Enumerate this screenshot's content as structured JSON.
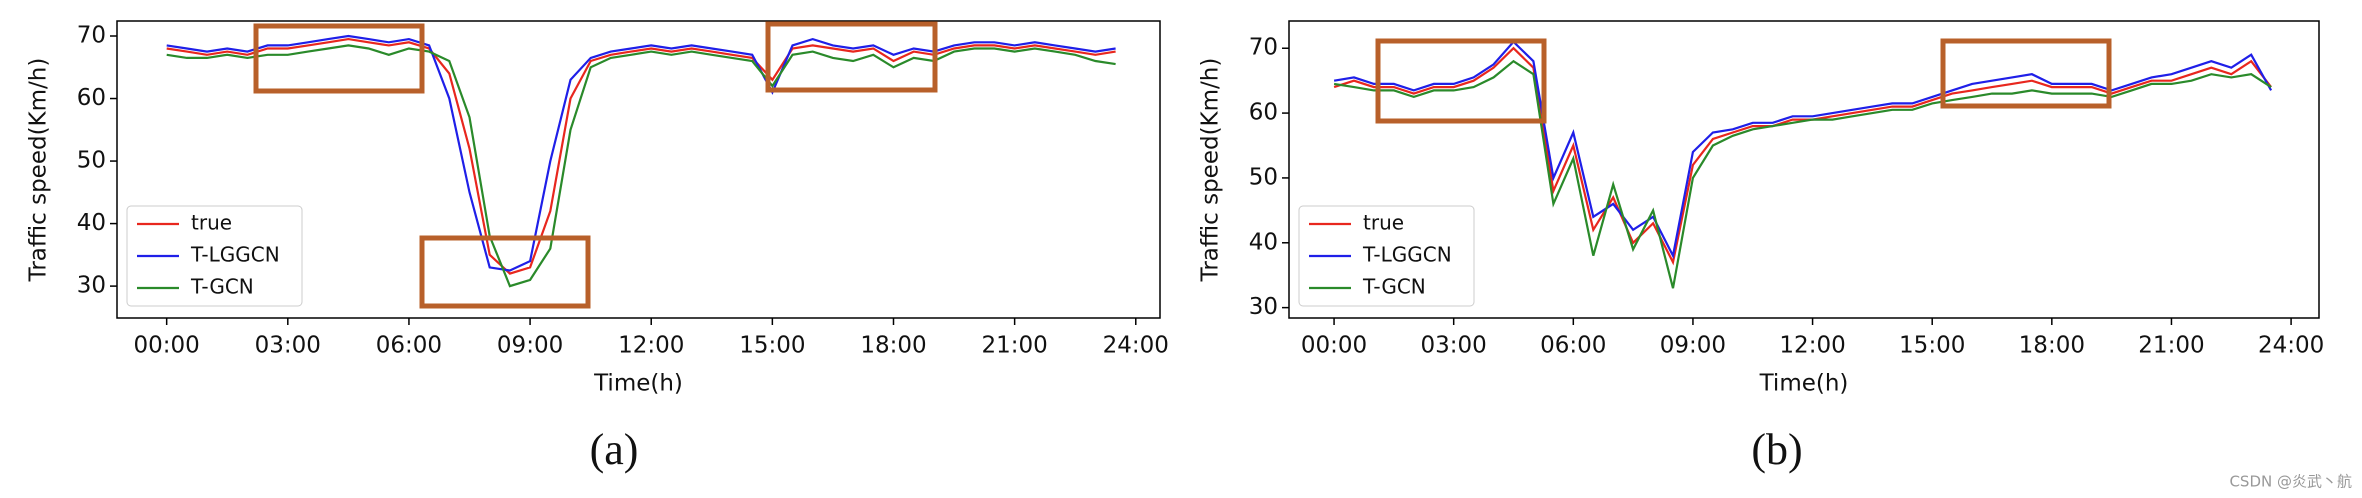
{
  "chart_data": [
    {
      "type": "line",
      "caption": "(a)",
      "xlabel": "Time(h)",
      "ylabel": "Traffic speed(Km/h)",
      "xlim": [
        -1.23,
        24.6
      ],
      "ylim": [
        24.9,
        72.4
      ],
      "xticks": [
        {
          "value": 0,
          "label": "00:00"
        },
        {
          "value": 3,
          "label": "03:00"
        },
        {
          "value": 6,
          "label": "06:00"
        },
        {
          "value": 9,
          "label": "09:00"
        },
        {
          "value": 12,
          "label": "12:00"
        },
        {
          "value": 15,
          "label": "15:00"
        },
        {
          "value": 18,
          "label": "18:00"
        },
        {
          "value": 21,
          "label": "21:00"
        },
        {
          "value": 24,
          "label": "24:00"
        }
      ],
      "yticks": [
        30,
        40,
        50,
        60,
        70
      ],
      "legend": "lower left",
      "x": [
        0,
        0.5,
        1,
        1.5,
        2,
        2.5,
        3,
        3.5,
        4,
        4.5,
        5,
        5.5,
        6,
        6.5,
        7,
        7.5,
        8,
        8.5,
        9,
        9.5,
        10,
        10.5,
        11,
        11.5,
        12,
        12.5,
        13,
        13.5,
        14,
        14.5,
        15,
        15.5,
        16,
        16.5,
        17,
        17.5,
        18,
        18.5,
        19,
        19.5,
        20,
        20.5,
        21,
        21.5,
        22,
        22.5,
        23,
        23.5
      ],
      "series": [
        {
          "name": "true",
          "color": "#e8271e",
          "values": [
            68,
            67.5,
            67,
            67.5,
            67,
            68,
            68,
            68.5,
            69,
            69.5,
            69,
            68.5,
            69,
            68,
            64,
            52,
            35,
            32,
            33,
            42,
            60,
            66,
            67,
            67.5,
            68,
            67.5,
            68,
            67.5,
            67,
            66.5,
            63,
            68,
            68.5,
            68,
            67.5,
            68,
            66,
            67.5,
            67,
            68,
            68.5,
            68.5,
            68,
            68.5,
            68,
            67.5,
            67,
            67.5
          ]
        },
        {
          "name": "T-LGGCN",
          "color": "#1f1fe8",
          "values": [
            68.5,
            68,
            67.5,
            68,
            67.5,
            68.5,
            68.5,
            69,
            69.5,
            70,
            69.5,
            69,
            69.5,
            68.5,
            60,
            45,
            33,
            32.5,
            34,
            50,
            63,
            66.5,
            67.5,
            68,
            68.5,
            68,
            68.5,
            68,
            67.5,
            67,
            61,
            68.5,
            69.5,
            68.5,
            68,
            68.5,
            67,
            68,
            67.5,
            68.5,
            69,
            69,
            68.5,
            69,
            68.5,
            68,
            67.5,
            68
          ]
        },
        {
          "name": "T-GCN",
          "color": "#2a8a2a",
          "values": [
            67,
            66.5,
            66.5,
            67,
            66.5,
            67,
            67,
            67.5,
            68,
            68.5,
            68,
            67,
            68,
            67.5,
            66,
            57,
            38,
            30,
            31,
            36,
            55,
            65,
            66.5,
            67,
            67.5,
            67,
            67.5,
            67,
            66.5,
            66,
            62,
            67,
            67.5,
            66.5,
            66,
            67,
            65,
            66.5,
            66,
            67.5,
            68,
            68,
            67.5,
            68,
            67.5,
            67,
            66,
            65.5
          ]
        }
      ]
    },
    {
      "type": "line",
      "caption": "(b)",
      "xlabel": "Time(h)",
      "ylabel": "Traffic speed(Km/h)",
      "xlim": [
        -1.13,
        24.7
      ],
      "ylim": [
        28.4,
        74.2
      ],
      "xticks": [
        {
          "value": 0,
          "label": "00:00"
        },
        {
          "value": 3,
          "label": "03:00"
        },
        {
          "value": 6,
          "label": "06:00"
        },
        {
          "value": 9,
          "label": "09:00"
        },
        {
          "value": 12,
          "label": "12:00"
        },
        {
          "value": 15,
          "label": "15:00"
        },
        {
          "value": 18,
          "label": "18:00"
        },
        {
          "value": 21,
          "label": "21:00"
        },
        {
          "value": 24,
          "label": "24:00"
        }
      ],
      "yticks": [
        30,
        40,
        50,
        60,
        70
      ],
      "legend": "lower left",
      "x": [
        0,
        0.5,
        1,
        1.5,
        2,
        2.5,
        3,
        3.5,
        4,
        4.5,
        5,
        5.5,
        6,
        6.5,
        7,
        7.5,
        8,
        8.5,
        9,
        9.5,
        10,
        10.5,
        11,
        11.5,
        12,
        12.5,
        13,
        13.5,
        14,
        14.5,
        15,
        15.5,
        16,
        16.5,
        17,
        17.5,
        18,
        18.5,
        19,
        19.5,
        20,
        20.5,
        21,
        21.5,
        22,
        22.5,
        23,
        23.5
      ],
      "series": [
        {
          "name": "true",
          "color": "#e8271e",
          "values": [
            64,
            65,
            64,
            64,
            63,
            64,
            64,
            65,
            67,
            70,
            67,
            48,
            55,
            42,
            47,
            40,
            43,
            37,
            52,
            56,
            57,
            58,
            58,
            59,
            59,
            59.5,
            60,
            60.5,
            61,
            61,
            62,
            63,
            63.5,
            64,
            64.5,
            65,
            64,
            64,
            64,
            63,
            64,
            65,
            65,
            66,
            67,
            66,
            68,
            64
          ]
        },
        {
          "name": "T-LGGCN",
          "color": "#1f1fe8",
          "values": [
            65,
            65.5,
            64.5,
            64.5,
            63.5,
            64.5,
            64.5,
            65.5,
            67.5,
            71,
            68,
            50,
            57,
            44,
            46,
            42,
            44,
            38,
            54,
            57,
            57.5,
            58.5,
            58.5,
            59.5,
            59.5,
            60,
            60.5,
            61,
            61.5,
            61.5,
            62.5,
            63.5,
            64.5,
            65,
            65.5,
            66,
            64.5,
            64.5,
            64.5,
            63.5,
            64.5,
            65.5,
            66,
            67,
            68,
            67,
            69,
            63.5
          ]
        },
        {
          "name": "T-GCN",
          "color": "#2a8a2a",
          "values": [
            64.5,
            64,
            63.5,
            63.5,
            62.5,
            63.5,
            63.5,
            64,
            65.5,
            68,
            66,
            46,
            53,
            38,
            49,
            39,
            45,
            33,
            50,
            55,
            56.5,
            57.5,
            58,
            58.5,
            59,
            59,
            59.5,
            60,
            60.5,
            60.5,
            61.5,
            62,
            62.5,
            63,
            63,
            63.5,
            63,
            63,
            63,
            62.5,
            63.5,
            64.5,
            64.5,
            65,
            66,
            65.5,
            66,
            64
          ]
        }
      ]
    }
  ],
  "watermark": "CSDN @炎武丶航"
}
